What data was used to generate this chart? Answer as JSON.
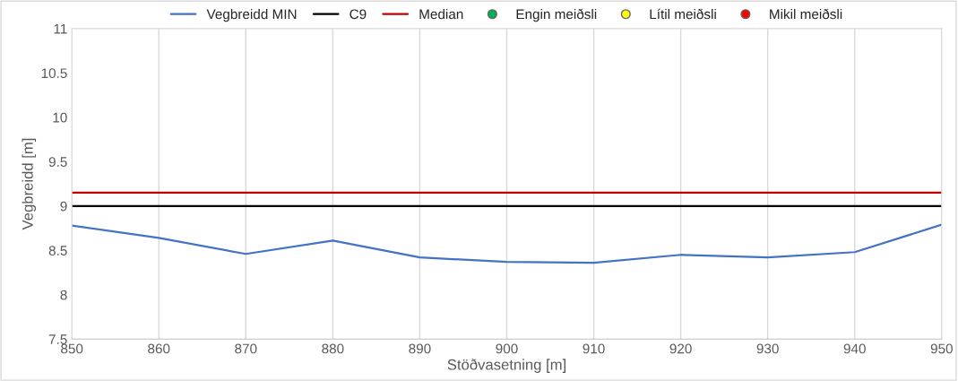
{
  "chart_data": {
    "type": "line",
    "xlabel": "Stöðvasetning [m]",
    "ylabel": "Vegbreidd [m]",
    "series": [
      {
        "name": "Vegbreidd MIN",
        "color": "#4472c4",
        "x": [
          850,
          860,
          870,
          880,
          890,
          900,
          910,
          920,
          930,
          940,
          950
        ],
        "values": [
          8.78,
          8.64,
          8.46,
          8.61,
          8.42,
          8.37,
          8.36,
          8.45,
          8.42,
          8.48,
          8.79
        ]
      },
      {
        "name": "C9",
        "color": "#000000",
        "x": [
          850,
          950
        ],
        "values": [
          9,
          9
        ]
      },
      {
        "name": "Median",
        "color": "#c00000",
        "x": [
          850,
          950
        ],
        "values": [
          9.15,
          9.15
        ]
      },
      {
        "name": "Engin meiðsli",
        "type": "scatter",
        "color": "#00b050"
      },
      {
        "name": "Lítil meiðsli",
        "type": "scatter",
        "color": "#ffff00"
      },
      {
        "name": "Mikil meiðsli",
        "type": "scatter",
        "color": "#ff0000"
      }
    ],
    "xlim": [
      850,
      950
    ],
    "xticks": [
      850,
      860,
      870,
      880,
      890,
      900,
      910,
      920,
      930,
      940,
      950
    ],
    "ylim": [
      7.5,
      11
    ],
    "yticks": [
      7.5,
      8,
      8.5,
      9,
      9.5,
      10,
      10.5,
      11
    ],
    "grid": "x",
    "legend": "top",
    "marker": "none",
    "line_style": "solid"
  }
}
